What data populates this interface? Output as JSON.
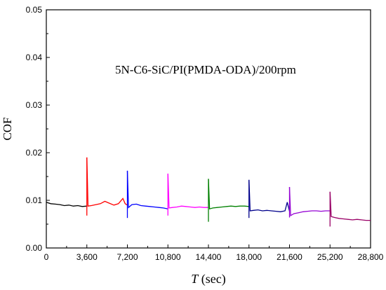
{
  "chart_data": {
    "type": "line",
    "title": "",
    "annotation": "5N-C6-SiC/PI(PMDA-ODA)/200rpm",
    "ylabel": "COF",
    "xlabel_italic": "T",
    "xlabel_unit": " (sec)",
    "xlim": [
      0,
      28800
    ],
    "ylim": [
      0,
      0.05
    ],
    "x_ticks": [
      0,
      3600,
      7200,
      10800,
      14400,
      18000,
      21600,
      25200,
      28800
    ],
    "x_tick_labels": [
      "0",
      "3,600",
      "7,200",
      "10,800",
      "14,400",
      "18,000",
      "21,600",
      "25,200",
      "28,800"
    ],
    "y_ticks": [
      0,
      0.01,
      0.02,
      0.03,
      0.04,
      0.05
    ],
    "y_tick_labels": [
      "0.00",
      "0.01",
      "0.02",
      "0.03",
      "0.04",
      "0.05"
    ],
    "grid": false,
    "legend": "none",
    "series": [
      {
        "color": "#000000",
        "x": [
          0,
          400,
          800,
          1200,
          1600,
          2000,
          2400,
          2800,
          3200,
          3600
        ],
        "y": [
          0.0096,
          0.0093,
          0.0092,
          0.0091,
          0.0089,
          0.009,
          0.0088,
          0.0089,
          0.0087,
          0.0088
        ]
      },
      {
        "color": "#ff0000",
        "x": [
          3600,
          3700,
          4000,
          4400,
          4800,
          5200,
          5600,
          6000,
          6400,
          6800,
          7000,
          7200
        ],
        "y": [
          0.019,
          0.0088,
          0.0089,
          0.0091,
          0.0093,
          0.0098,
          0.0094,
          0.009,
          0.0093,
          0.0104,
          0.0093,
          0.009
        ]
      },
      {
        "color": "#0000ff",
        "x": [
          7200,
          7300,
          7600,
          8000,
          8400,
          8800,
          9200,
          9600,
          10000,
          10400,
          10800
        ],
        "y": [
          0.0162,
          0.0085,
          0.0091,
          0.0092,
          0.0089,
          0.0088,
          0.0087,
          0.0086,
          0.0085,
          0.0084,
          0.0082
        ]
      },
      {
        "color": "#ff00ff",
        "x": [
          10800,
          10900,
          11200,
          11600,
          12000,
          12400,
          12800,
          13200,
          13600,
          14000,
          14400
        ],
        "y": [
          0.0156,
          0.0084,
          0.0085,
          0.0086,
          0.0088,
          0.0087,
          0.0086,
          0.0085,
          0.0086,
          0.0085,
          0.0085
        ]
      },
      {
        "color": "#008000",
        "x": [
          14400,
          14500,
          14800,
          15200,
          15600,
          16000,
          16400,
          16800,
          17200,
          17600,
          18000
        ],
        "y": [
          0.0145,
          0.0082,
          0.0084,
          0.0085,
          0.0086,
          0.0087,
          0.0088,
          0.0087,
          0.0088,
          0.0088,
          0.0087
        ]
      },
      {
        "color": "#00008b",
        "x": [
          18000,
          18100,
          18400,
          18800,
          19200,
          19600,
          20000,
          20400,
          20800,
          21200,
          21400,
          21600
        ],
        "y": [
          0.0143,
          0.0078,
          0.0079,
          0.008,
          0.0078,
          0.0079,
          0.0078,
          0.0077,
          0.0076,
          0.0078,
          0.0096,
          0.0077
        ]
      },
      {
        "color": "#9400d3",
        "x": [
          21600,
          21700,
          22000,
          22400,
          22800,
          23200,
          23600,
          24000,
          24400,
          24800,
          25200
        ],
        "y": [
          0.0128,
          0.0068,
          0.0072,
          0.0074,
          0.0076,
          0.0077,
          0.0078,
          0.0078,
          0.0077,
          0.0078,
          0.0078
        ]
      },
      {
        "color": "#990066",
        "x": [
          25200,
          25300,
          25600,
          26000,
          26400,
          26800,
          27200,
          27600,
          28000,
          28400,
          28800
        ],
        "y": [
          0.0118,
          0.0066,
          0.0064,
          0.0062,
          0.0061,
          0.006,
          0.0059,
          0.006,
          0.0059,
          0.0058,
          0.0058
        ]
      }
    ],
    "spikes": [
      {
        "x": 3600,
        "color": "#ff0000",
        "y": [
          0.0068,
          0.019
        ]
      },
      {
        "x": 7200,
        "color": "#0000ff",
        "y": [
          0.0063,
          0.0162
        ]
      },
      {
        "x": 10800,
        "color": "#ff00ff",
        "y": [
          0.0068,
          0.0156
        ]
      },
      {
        "x": 14400,
        "color": "#008000",
        "y": [
          0.0055,
          0.0145
        ]
      },
      {
        "x": 18000,
        "color": "#00008b",
        "y": [
          0.0063,
          0.0143
        ]
      },
      {
        "x": 21600,
        "color": "#9400d3",
        "y": [
          0.0064,
          0.0128
        ]
      },
      {
        "x": 25200,
        "color": "#990066",
        "y": [
          0.0045,
          0.0118
        ]
      }
    ]
  }
}
